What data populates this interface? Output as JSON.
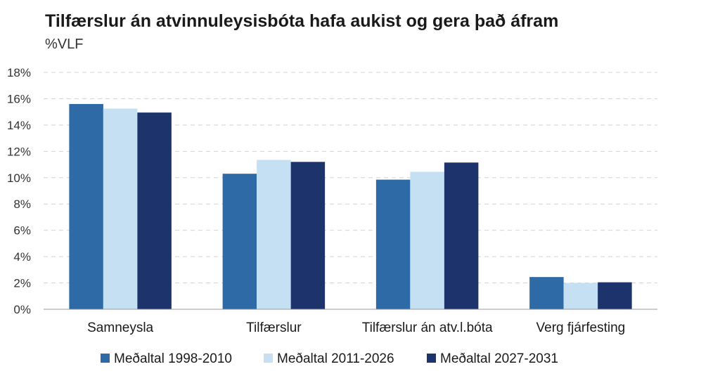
{
  "chart_data": {
    "type": "bar",
    "title": "Tilfærslur án atvinnuleysisbóta hafa aukist og gera það áfram",
    "subtitle": "%VLF",
    "categories": [
      "Samneysla",
      "Tilfærslur",
      "Tilfærslur án atv.l.bóta",
      "Verg fjárfesting"
    ],
    "series": [
      {
        "name": "Meðaltal 1998-2010",
        "color": "#2e6aa6",
        "values": [
          15.6,
          10.3,
          9.85,
          2.45
        ]
      },
      {
        "name": "Meðaltal 2011-2026",
        "color": "#c6e0f3",
        "values": [
          15.25,
          11.35,
          10.45,
          2.0
        ]
      },
      {
        "name": "Meðaltal 2027-2031",
        "color": "#1c336b",
        "values": [
          14.95,
          11.2,
          11.15,
          2.05
        ]
      }
    ],
    "ylim": [
      0,
      18
    ],
    "yticks": [
      "0%",
      "2%",
      "4%",
      "6%",
      "8%",
      "10%",
      "12%",
      "14%",
      "16%",
      "18%"
    ],
    "ytick_values": [
      0,
      2,
      4,
      6,
      8,
      10,
      12,
      14,
      16,
      18
    ],
    "grid": true,
    "legend_position": "bottom"
  }
}
